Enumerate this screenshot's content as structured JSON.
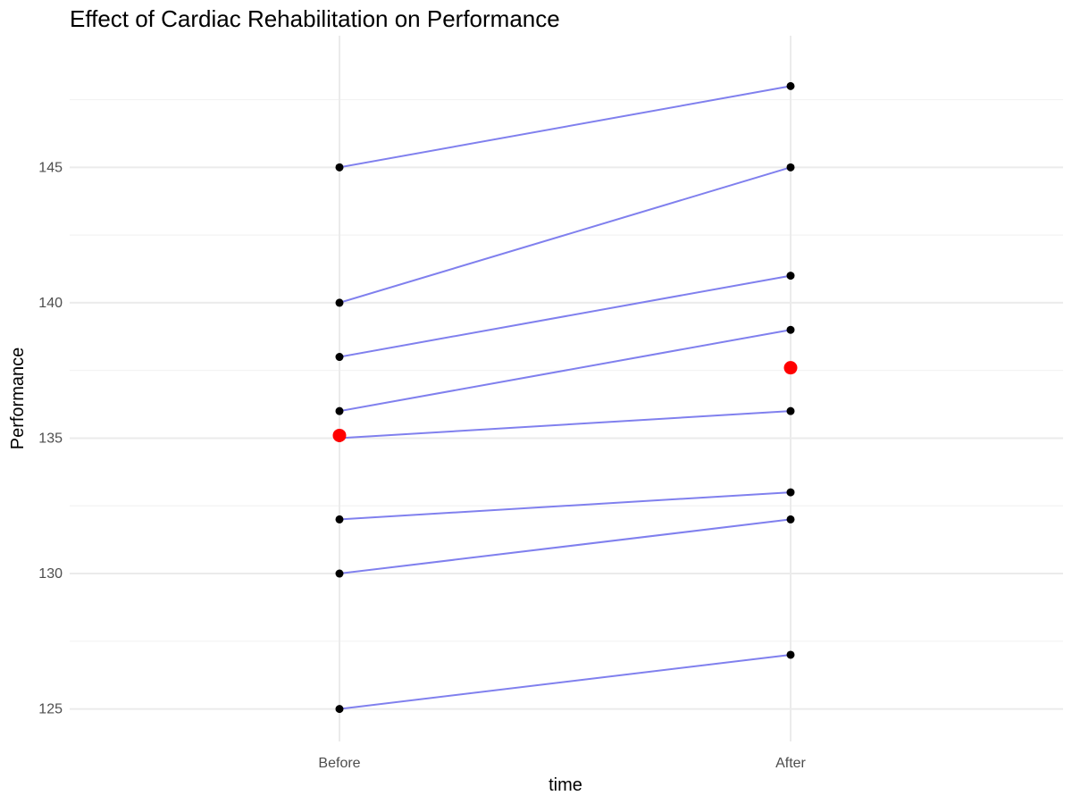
{
  "chart_data": {
    "type": "line",
    "title": "Effect of Cardiac Rehabilitation on Performance",
    "xlabel": "time",
    "ylabel": "Performance",
    "categories": [
      "Before",
      "After"
    ],
    "ylim": [
      123.8,
      149.2
    ],
    "yticks": [
      125,
      130,
      135,
      140,
      145
    ],
    "grid": true,
    "legend": "none",
    "colors": {
      "line": "#8080ee",
      "point": "#000000",
      "mean": "#ff0000",
      "grid": "#ebebeb"
    },
    "subjects": [
      {
        "before": 145,
        "after": 148
      },
      {
        "before": 140,
        "after": 145
      },
      {
        "before": 138,
        "after": 141
      },
      {
        "before": 136,
        "after": 139
      },
      {
        "before": 135,
        "after": 136
      },
      {
        "before": 132,
        "after": 133
      },
      {
        "before": 130,
        "after": 132
      },
      {
        "before": 125,
        "after": 127
      }
    ],
    "means": {
      "before": 135.1,
      "after": 137.6
    }
  }
}
